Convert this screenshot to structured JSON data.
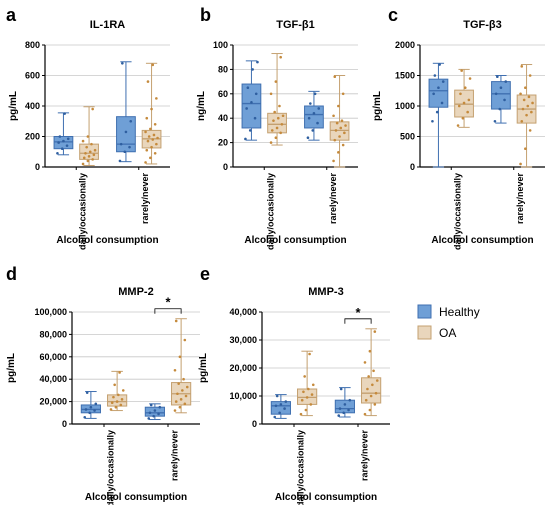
{
  "legend": [
    {
      "label": "Healthy",
      "color": "#6f9fd6",
      "edge": "#3f6fb0"
    },
    {
      "label": "OA",
      "color": "#e9d6bc",
      "edge": "#c4a070"
    }
  ],
  "chart_data": [
    {
      "letter": "a",
      "type": "box",
      "title": "IL-1RA",
      "ylabel": "pg/mL",
      "xlabel": "Alcohol consumption",
      "ylim": [
        0,
        800
      ],
      "yticks": [
        "0",
        "200",
        "400",
        "600",
        "800"
      ],
      "ytick_values": [
        0,
        200,
        400,
        600,
        800
      ],
      "categories": [
        "daily/occasionally",
        "rarely/never"
      ],
      "groups": [
        {
          "series": "Healthy",
          "category": "daily/occasionally",
          "min": 80,
          "q1": 120,
          "median": 165,
          "q3": 200,
          "max": 355,
          "points": [
            90,
            120,
            140,
            160,
            170,
            185,
            200,
            350
          ]
        },
        {
          "series": "OA",
          "category": "daily/occasionally",
          "min": 10,
          "q1": 50,
          "median": 90,
          "q3": 150,
          "max": 395,
          "points": [
            20,
            40,
            50,
            60,
            70,
            80,
            90,
            100,
            110,
            130,
            150,
            170,
            200,
            380
          ]
        },
        {
          "series": "Healthy",
          "category": "rarely/never",
          "min": 35,
          "q1": 100,
          "median": 150,
          "q3": 330,
          "max": 690,
          "points": [
            40,
            100,
            130,
            150,
            230,
            300,
            680
          ]
        },
        {
          "series": "OA",
          "category": "rarely/never",
          "min": 20,
          "q1": 125,
          "median": 185,
          "q3": 240,
          "max": 680,
          "points": [
            30,
            60,
            90,
            110,
            130,
            150,
            170,
            180,
            190,
            200,
            210,
            230,
            250,
            280,
            320,
            380,
            450,
            560,
            670
          ]
        }
      ]
    },
    {
      "letter": "b",
      "type": "box",
      "title": "TGF-β1",
      "ylabel": "ng/mL",
      "xlabel": "Alcohol consumption",
      "ylim": [
        0,
        100
      ],
      "yticks": [
        "0",
        "20",
        "40",
        "60",
        "80",
        "100"
      ],
      "ytick_values": [
        0,
        20,
        40,
        60,
        80,
        100
      ],
      "categories": [
        "daily/occasionally",
        "rarely/never"
      ],
      "groups": [
        {
          "series": "Healthy",
          "category": "daily/occasionally",
          "min": 22,
          "q1": 32,
          "median": 52,
          "q3": 68,
          "max": 87,
          "points": [
            23,
            30,
            40,
            48,
            53,
            60,
            65,
            80,
            86
          ]
        },
        {
          "series": "OA",
          "category": "daily/occasionally",
          "min": 18,
          "q1": 28,
          "median": 35,
          "q3": 44,
          "max": 93,
          "points": [
            20,
            24,
            28,
            30,
            32,
            35,
            38,
            40,
            42,
            45,
            50,
            60,
            70,
            90
          ]
        },
        {
          "series": "Healthy",
          "category": "rarely/never",
          "min": 22,
          "q1": 32,
          "median": 43,
          "q3": 50,
          "max": 62,
          "points": [
            24,
            30,
            36,
            40,
            44,
            48,
            52,
            60
          ]
        },
        {
          "series": "OA",
          "category": "rarely/never",
          "min": 0,
          "q1": 22,
          "median": 30,
          "q3": 37,
          "max": 75,
          "points": [
            5,
            12,
            18,
            22,
            25,
            28,
            30,
            32,
            34,
            36,
            38,
            42,
            50,
            60,
            74
          ]
        }
      ]
    },
    {
      "letter": "c",
      "type": "box",
      "title": "TGF-β3",
      "ylabel": "pg/mL",
      "xlabel": "Alcohol consumption",
      "ylim": [
        0,
        2000
      ],
      "yticks": [
        "0",
        "500",
        "1000",
        "1500",
        "2000"
      ],
      "ytick_values": [
        0,
        500,
        1000,
        1500,
        2000
      ],
      "categories": [
        "daily/occasionally",
        "rarely/never"
      ],
      "groups": [
        {
          "series": "Healthy",
          "category": "daily/occasionally",
          "min": 0,
          "q1": 980,
          "median": 1250,
          "q3": 1440,
          "max": 1700,
          "points": [
            750,
            900,
            1050,
            1200,
            1300,
            1400,
            1500,
            1680
          ]
        },
        {
          "series": "OA",
          "category": "daily/occasionally",
          "min": 650,
          "q1": 820,
          "median": 1030,
          "q3": 1260,
          "max": 1600,
          "points": [
            680,
            800,
            900,
            1000,
            1050,
            1100,
            1200,
            1300,
            1450,
            1580
          ]
        },
        {
          "series": "Healthy",
          "category": "rarely/never",
          "min": 720,
          "q1": 950,
          "median": 1200,
          "q3": 1400,
          "max": 1500,
          "points": [
            750,
            950,
            1100,
            1200,
            1300,
            1400,
            1480
          ]
        },
        {
          "series": "OA",
          "category": "rarely/never",
          "min": 0,
          "q1": 720,
          "median": 950,
          "q3": 1180,
          "max": 1680,
          "points": [
            50,
            300,
            600,
            750,
            850,
            900,
            950,
            1000,
            1050,
            1100,
            1150,
            1200,
            1300,
            1500,
            1650
          ]
        }
      ]
    },
    {
      "letter": "d",
      "type": "box",
      "title": "MMP-2",
      "ylabel": "pg/mL",
      "xlabel": "Alcohol consumption",
      "ylim": [
        0,
        100000
      ],
      "yticks": [
        "0",
        "20,000",
        "40,000",
        "60,000",
        "80,000",
        "100,000"
      ],
      "ytick_values": [
        0,
        20000,
        40000,
        60000,
        80000,
        100000
      ],
      "categories": [
        "daily/occasionally",
        "rarely/never"
      ],
      "significance": {
        "category": "rarely/never",
        "label": "*"
      },
      "groups": [
        {
          "series": "Healthy",
          "category": "daily/occasionally",
          "min": 5000,
          "q1": 10000,
          "median": 13000,
          "q3": 17000,
          "max": 29000,
          "points": [
            6000,
            10000,
            12000,
            13000,
            15000,
            18000,
            28000
          ]
        },
        {
          "series": "OA",
          "category": "daily/occasionally",
          "min": 12000,
          "q1": 16000,
          "median": 20000,
          "q3": 26000,
          "max": 47000,
          "points": [
            13000,
            15000,
            17000,
            19000,
            20000,
            22000,
            24000,
            26000,
            30000,
            35000,
            46000
          ]
        },
        {
          "series": "Healthy",
          "category": "rarely/never",
          "min": 4000,
          "q1": 7000,
          "median": 10000,
          "q3": 15000,
          "max": 18000,
          "points": [
            5000,
            7000,
            9000,
            10000,
            12000,
            15000,
            17000
          ]
        },
        {
          "series": "OA",
          "category": "rarely/never",
          "min": 10000,
          "q1": 17000,
          "median": 27000,
          "q3": 37000,
          "max": 94000,
          "points": [
            12000,
            15000,
            18000,
            20000,
            22000,
            25000,
            27000,
            30000,
            33000,
            36000,
            40000,
            48000,
            60000,
            75000,
            92000
          ]
        }
      ]
    },
    {
      "letter": "e",
      "type": "box",
      "title": "MMP-3",
      "ylabel": "pg/mL",
      "xlabel": "Alcohol consumption",
      "ylim": [
        0,
        40000
      ],
      "yticks": [
        "0",
        "10,000",
        "20,000",
        "30,000",
        "40,000"
      ],
      "ytick_values": [
        0,
        10000,
        20000,
        30000,
        40000
      ],
      "categories": [
        "daily/occasionally",
        "rarely/never"
      ],
      "significance": {
        "category": "rarely/never",
        "label": "*"
      },
      "groups": [
        {
          "series": "Healthy",
          "category": "daily/occasionally",
          "min": 2000,
          "q1": 3500,
          "median": 6500,
          "q3": 8000,
          "max": 10500,
          "points": [
            2500,
            4000,
            5500,
            6500,
            7000,
            8000,
            10000
          ]
        },
        {
          "series": "OA",
          "category": "daily/occasionally",
          "min": 3000,
          "q1": 7000,
          "median": 9500,
          "q3": 12500,
          "max": 26000,
          "points": [
            3500,
            5000,
            7000,
            8500,
            9500,
            10500,
            11500,
            12500,
            14000,
            17000,
            25000
          ]
        },
        {
          "series": "Healthy",
          "category": "rarely/never",
          "min": 2500,
          "q1": 4000,
          "median": 5500,
          "q3": 8500,
          "max": 13000,
          "points": [
            3000,
            4000,
            5000,
            5500,
            7000,
            8500,
            12500
          ]
        },
        {
          "series": "OA",
          "category": "rarely/never",
          "min": 3000,
          "q1": 7500,
          "median": 11000,
          "q3": 16500,
          "max": 34000,
          "points": [
            3500,
            5000,
            7000,
            8500,
            10000,
            11000,
            12500,
            14000,
            15500,
            17000,
            19000,
            22000,
            26000,
            33000
          ]
        }
      ]
    }
  ]
}
